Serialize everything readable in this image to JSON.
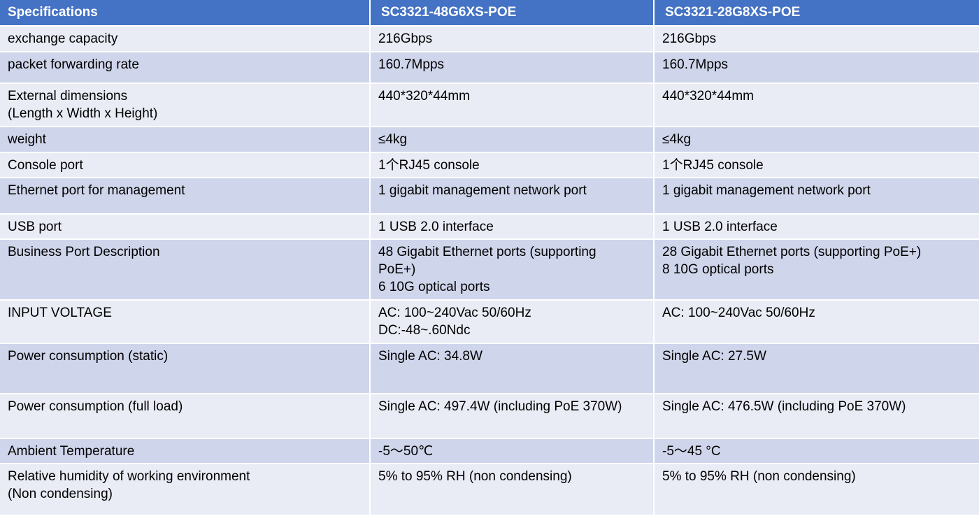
{
  "header": {
    "col0": "Specifications",
    "col1": "SC3321-48G6XS-POE",
    "col2": "SC3321-28G8XS-POE"
  },
  "rows": [
    {
      "spec": [
        "exchange capacity"
      ],
      "m1": [
        "216Gbps"
      ],
      "m2": [
        "216Gbps"
      ]
    },
    {
      "spec": [
        "packet forwarding rate"
      ],
      "m1": [
        "160.7Mpps"
      ],
      "m2": [
        "160.7Mpps"
      ]
    },
    {
      "spec": [
        "External dimensions",
        "(Length x Width x Height)"
      ],
      "m1": [
        "440*320*44mm"
      ],
      "m2": [
        "440*320*44mm"
      ]
    },
    {
      "spec": [
        "weight"
      ],
      "m1": [
        "≤4kg"
      ],
      "m2": [
        "≤4kg"
      ]
    },
    {
      "spec": [
        "Console port"
      ],
      "m1": [
        "1个RJ45 console"
      ],
      "m2": [
        "1个RJ45 console"
      ]
    },
    {
      "spec": [
        "Ethernet port for management"
      ],
      "m1": [
        "1 gigabit management network port"
      ],
      "m2": [
        "1 gigabit management network port"
      ]
    },
    {
      "spec": [
        "USB port"
      ],
      "m1": [
        "1 USB 2.0 interface"
      ],
      "m2": [
        "1 USB 2.0 interface"
      ]
    },
    {
      "spec": [
        "Business Port Description"
      ],
      "m1": [
        "48 Gigabit Ethernet ports (supporting",
        "PoE+)",
        "6 10G optical ports"
      ],
      "m2": [
        "28 Gigabit Ethernet ports (supporting PoE+)",
        "8 10G optical ports"
      ]
    },
    {
      "spec": [
        "INPUT VOLTAGE"
      ],
      "m1": [
        "AC: 100~240Vac 50/60Hz",
        "DC:-48~.60Ndc"
      ],
      "m2": [
        "AC: 100~240Vac 50/60Hz"
      ]
    },
    {
      "spec": [
        "Power consumption (static)"
      ],
      "m1": [
        "Single AC: 34.8W"
      ],
      "m2": [
        "Single AC: 27.5W"
      ]
    },
    {
      "spec": [
        "Power consumption (full load)"
      ],
      "m1": [
        "Single AC: 497.4W (including PoE 370W)"
      ],
      "m2": [
        "Single AC: 476.5W (including PoE 370W)"
      ]
    },
    {
      "spec": [
        "Ambient Temperature"
      ],
      "m1": [
        "-5～50℃"
      ],
      "m2": [
        "-5～45 °C"
      ]
    },
    {
      "spec": [
        "Relative humidity of working environment",
        "(Non condensing)"
      ],
      "m1": [
        "5% to 95% RH (non condensing)"
      ],
      "m2": [
        "5% to 95% RH (non condensing)"
      ]
    }
  ]
}
